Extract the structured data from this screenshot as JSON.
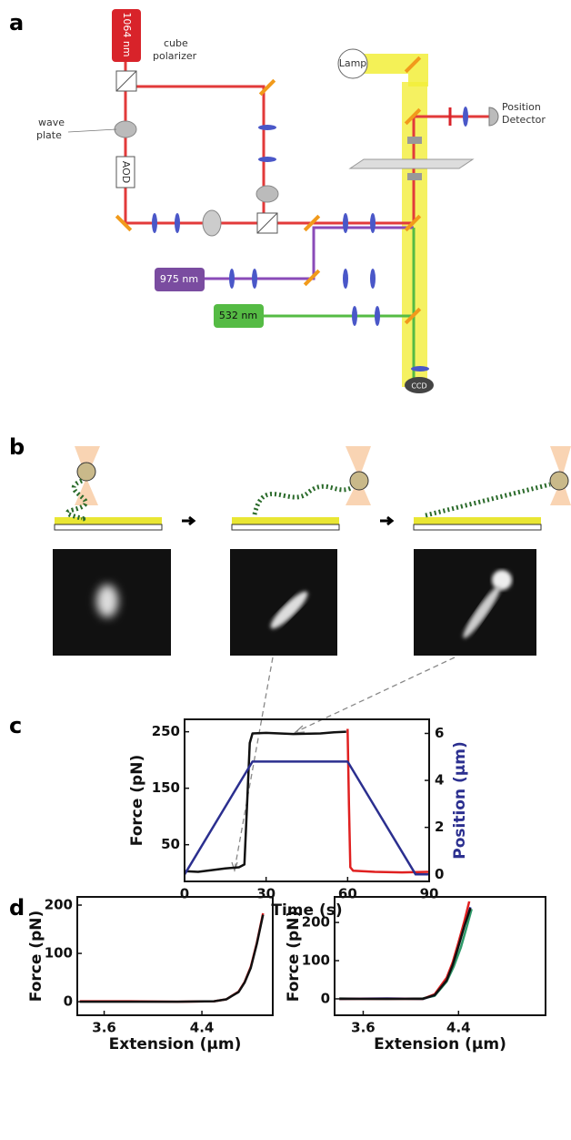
{
  "panels": [
    "a",
    "b",
    "c",
    "d"
  ],
  "diagram_a": {
    "laser_1064": "1064 nm",
    "cube_polarizer": "cube\npolarizer",
    "wave_plate": "wave\nplate",
    "aod": "AOD",
    "lamp": "Lamp",
    "position_detector": "Position\nDetector",
    "laser_975": "975 nm",
    "laser_532": "532 nm",
    "ccd": "CCD"
  },
  "chart_data": [
    {
      "type": "line",
      "xlabel": "Time (s)",
      "ylabel": "Force (pN)",
      "y2label": "Position (μm)",
      "y2color": "#2b2f8f",
      "xlim": [
        0,
        90
      ],
      "xticks": [
        0,
        30,
        60,
        90
      ],
      "ylim": [
        -15,
        272
      ],
      "yticks": [
        50,
        150,
        250
      ],
      "y2lim": [
        -0.3,
        6.6
      ],
      "y2ticks": [
        0,
        2,
        4,
        6
      ],
      "series": [
        {
          "color": "#111111",
          "x": [
            0,
            5,
            10,
            15,
            20,
            22,
            23,
            24,
            25,
            30,
            40,
            50,
            55,
            59.5
          ],
          "values": [
            3,
            2,
            5,
            8,
            10,
            15,
            120,
            230,
            247,
            248,
            246,
            247,
            249,
            250
          ]
        },
        {
          "color": "#e02020",
          "x": [
            60,
            60.5,
            61,
            62,
            70,
            80,
            90
          ],
          "values": [
            255,
            120,
            10,
            4,
            2,
            1,
            2
          ]
        },
        {
          "color": "#2b2f8f",
          "axis": "y2",
          "x": [
            0,
            25,
            60,
            85,
            90
          ],
          "values": [
            0,
            4.8,
            4.8,
            0,
            0
          ]
        }
      ]
    },
    {
      "type": "line",
      "xlabel": "Extension (μm)",
      "ylabel": "Force (pN)",
      "xlim": [
        3.38,
        4.98
      ],
      "xticks": [
        3.6,
        4.4
      ],
      "ylim": [
        -28,
        217
      ],
      "yticks": [
        0,
        100,
        200
      ],
      "series": [
        {
          "color": "#e02020",
          "x": [
            3.4,
            3.8,
            4.2,
            4.5,
            4.6,
            4.7,
            4.75,
            4.8,
            4.85,
            4.9
          ],
          "values": [
            1,
            1,
            0,
            1,
            5,
            21,
            41,
            72,
            122,
            183
          ]
        },
        {
          "color": "#111111",
          "x": [
            3.4,
            3.8,
            4.2,
            4.5,
            4.6,
            4.7,
            4.75,
            4.8,
            4.85,
            4.9
          ],
          "values": [
            0,
            0,
            0,
            1,
            5,
            20,
            40,
            70,
            120,
            180
          ]
        }
      ]
    },
    {
      "type": "line",
      "xlabel": "Extension (μm)",
      "ylabel": "Force (pN)",
      "xlim": [
        3.36,
        5.13
      ],
      "xticks": [
        3.6,
        4.4
      ],
      "ylim": [
        -43,
        267
      ],
      "yticks": [
        0,
        100,
        200
      ],
      "series": [
        {
          "color": "#2f9a6a",
          "x": [
            3.4,
            3.8,
            4.1,
            4.2,
            4.3,
            4.36,
            4.42,
            4.47,
            4.51
          ],
          "values": [
            1,
            0,
            1,
            8,
            45,
            85,
            135,
            190,
            235
          ]
        },
        {
          "color": "#2440c0",
          "x": [
            3.4,
            3.8,
            4.1,
            4.2,
            4.3,
            4.35,
            4.4,
            4.45,
            4.5
          ],
          "values": [
            0,
            1,
            0,
            10,
            50,
            90,
            140,
            195,
            240
          ]
        },
        {
          "color": "#e02020",
          "x": [
            3.4,
            3.8,
            4.1,
            4.2,
            4.3,
            4.35,
            4.4,
            4.45,
            4.49
          ],
          "values": [
            0,
            0,
            0,
            12,
            55,
            95,
            148,
            205,
            255
          ]
        },
        {
          "color": "#111111",
          "x": [
            3.4,
            3.8,
            4.1,
            4.2,
            4.3,
            4.35,
            4.4,
            4.45,
            4.5
          ],
          "values": [
            0,
            0,
            0,
            10,
            48,
            88,
            138,
            192,
            238
          ]
        }
      ]
    }
  ]
}
